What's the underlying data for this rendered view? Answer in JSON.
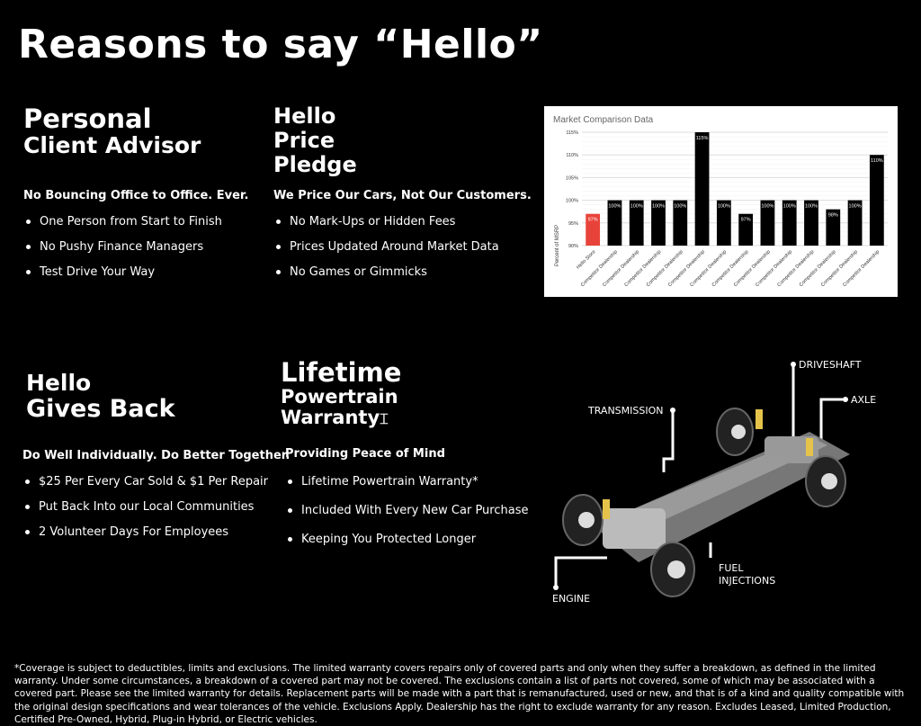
{
  "title": "Reasons to say “Hello”",
  "sections": [
    {
      "title_lines": [
        "Personal",
        "Client Advisor"
      ],
      "subtitle": "No Bouncing Office to Office. Ever.",
      "items": [
        "One Person from Start to Finish",
        "No Pushy Finance Managers",
        "Test Drive Your Way"
      ]
    },
    {
      "title_lines": [
        "Hello",
        "Price",
        "Pledge"
      ],
      "subtitle": "We Price Our Cars, Not Our Customers.",
      "items": [
        "No Mark-Ups or Hidden Fees",
        "Prices Updated Around Market Data",
        "No Games or Gimmicks"
      ]
    },
    {
      "title_lines": [
        "Hello",
        "Gives Back"
      ],
      "subtitle": "Do Well Individually. Do Better Together.",
      "items": [
        "$25 Per Every Car Sold & $1 Per Repair",
        "Put Back Into our Local Communities",
        "2 Volunteer Days For Employees"
      ]
    },
    {
      "title_lines": [
        "Lifetime",
        "Powertrain",
        "Warranty"
      ],
      "subtitle": "Providing Peace of Mind",
      "items": [
        "Lifetime Powertrain Warranty*",
        "Included With Every New Car Purchase",
        "Keeping You Protected Longer"
      ]
    }
  ],
  "diagram_labels": {
    "driveshaft": "DRIVESHAFT",
    "axle": "AXLE",
    "transmission": "TRANSMISSION",
    "fuel": "FUEL INJECTIONS",
    "engine": "ENGINE"
  },
  "chart_data": {
    "type": "bar",
    "title": "Market Comparison Data",
    "ylabel": "Percent of MSRP",
    "ylim": [
      90,
      115
    ],
    "yticks": [
      "90%",
      "95%",
      "100%",
      "105%",
      "110%",
      "115%"
    ],
    "categories": [
      "Hello Store",
      "Competitor Dealership",
      "Competitor Dealership",
      "Competitor Dealership",
      "Competitor Dealership",
      "Competitor Dealership",
      "Competitor Dealership",
      "Competitor Dealership",
      "Competitor Dealership",
      "Competitor Dealership",
      "Competitor Dealership",
      "Competitor Dealership",
      "Competitor Dealership",
      "Competitor Dealership"
    ],
    "values": [
      97,
      100,
      100,
      100,
      100,
      115,
      100,
      97,
      100,
      100,
      100,
      98,
      100,
      110
    ],
    "data_labels": [
      "97%",
      "100%",
      "100%",
      "100%",
      "100%",
      "115%",
      "100%",
      "97%",
      "100%",
      "100%",
      "100%",
      "98%",
      "100%",
      "110%"
    ],
    "colors": {
      "highlight": "#e8433a",
      "default": "#000000"
    },
    "grid": true
  },
  "footer": "*Coverage is subject to deductibles, limits and exclusions. The limited warranty covers repairs only of covered parts and only when they suffer a breakdown, as defined in the limited warranty. Under some circumstances, a breakdown of a covered part may not be covered. The exclusions contain a list of parts not covered, some of which may be associated with a covered part. Please see the limited warranty for details. Replacement parts will be made with a part that is remanufactured, used or new, and that is of a kind and quality compatible with the original design specifications and wear tolerances of the vehicle. Exclusions Apply. Dealership has the right to exclude warranty for any reason. Excludes Leased, Limited Production, Certified Pre-Owned, Hybrid, Plug-in Hybrid, or Electric vehicles."
}
